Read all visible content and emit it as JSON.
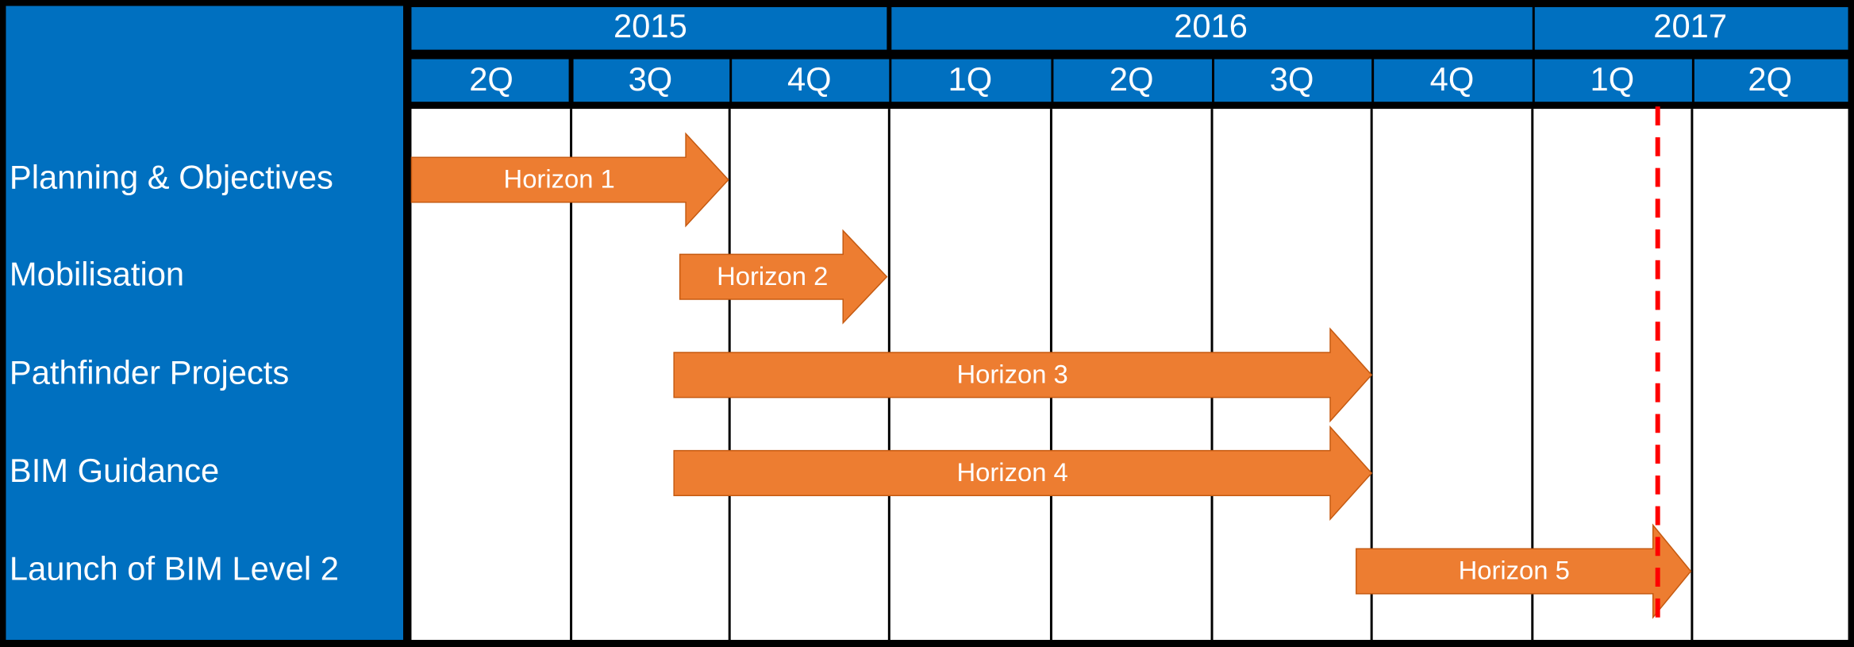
{
  "timeline": {
    "years": [
      {
        "label": "2015",
        "quarters": [
          "2Q",
          "3Q",
          "4Q"
        ]
      },
      {
        "label": "2016",
        "quarters": [
          "1Q",
          "2Q",
          "3Q",
          "4Q"
        ]
      },
      {
        "label": "2017",
        "quarters": [
          "1Q",
          "2Q"
        ]
      }
    ],
    "rows": [
      {
        "label": "Planning & Objectives",
        "bar": "Horizon 1"
      },
      {
        "label": "Mobilisation",
        "bar": "Horizon 2"
      },
      {
        "label": "Pathfinder Projects",
        "bar": "Horizon 3"
      },
      {
        "label": "BIM Guidance",
        "bar": "Horizon 4"
      },
      {
        "label": "Launch of BIM Level 2",
        "bar": "Horizon 5"
      }
    ]
  }
}
